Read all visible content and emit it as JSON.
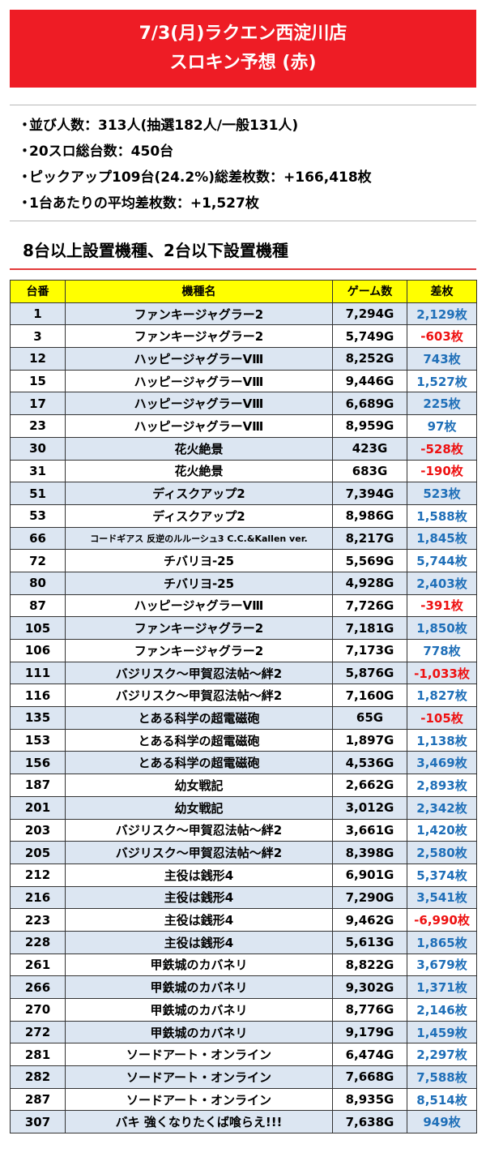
{
  "banner": {
    "line1": "7/3(月)ラクエン西淀川店",
    "line2": "スロキン予想 (赤)"
  },
  "stats": [
    "並び人数：313人(抽選182人/一般131人)",
    "20スロ総台数：450台",
    "ピックアップ109台(24.2%)総差枚数：+166,418枚",
    "1台あたりの平均差枚数：+1,527枚"
  ],
  "section_title": "8台以上設置機種、2台以下設置機種",
  "table": {
    "headers": [
      "台番",
      "機種名",
      "ゲーム数",
      "差枚"
    ],
    "rows": [
      [
        "1",
        "ファンキージャグラー2",
        "7,294G",
        "2,129枚"
      ],
      [
        "3",
        "ファンキージャグラー2",
        "5,749G",
        "-603枚"
      ],
      [
        "12",
        "ハッピージャグラーVⅢ",
        "8,252G",
        "743枚"
      ],
      [
        "15",
        "ハッピージャグラーVⅢ",
        "9,446G",
        "1,527枚"
      ],
      [
        "17",
        "ハッピージャグラーVⅢ",
        "6,689G",
        "225枚"
      ],
      [
        "23",
        "ハッピージャグラーVⅢ",
        "8,959G",
        "97枚"
      ],
      [
        "30",
        "花火絶景",
        "423G",
        "-528枚"
      ],
      [
        "31",
        "花火絶景",
        "683G",
        "-190枚"
      ],
      [
        "51",
        "ディスクアップ2",
        "7,394G",
        "523枚"
      ],
      [
        "53",
        "ディスクアップ2",
        "8,986G",
        "1,588枚"
      ],
      [
        "66",
        "コードギアス 反逆のルルーシュ3 C.C.&Kallen ver.",
        "8,217G",
        "1,845枚"
      ],
      [
        "72",
        "チバリヨ-25",
        "5,569G",
        "5,744枚"
      ],
      [
        "80",
        "チバリヨ-25",
        "4,928G",
        "2,403枚"
      ],
      [
        "87",
        "ハッピージャグラーVⅢ",
        "7,726G",
        "-391枚"
      ],
      [
        "105",
        "ファンキージャグラー2",
        "7,181G",
        "1,850枚"
      ],
      [
        "106",
        "ファンキージャグラー2",
        "7,173G",
        "778枚"
      ],
      [
        "111",
        "バジリスク～甲賀忍法帖～絆2",
        "5,876G",
        "-1,033枚"
      ],
      [
        "116",
        "バジリスク～甲賀忍法帖～絆2",
        "7,160G",
        "1,827枚"
      ],
      [
        "135",
        "とある科学の超電磁砲",
        "65G",
        "-105枚"
      ],
      [
        "153",
        "とある科学の超電磁砲",
        "1,897G",
        "1,138枚"
      ],
      [
        "156",
        "とある科学の超電磁砲",
        "4,536G",
        "3,469枚"
      ],
      [
        "187",
        "幼女戦記",
        "2,662G",
        "2,893枚"
      ],
      [
        "201",
        "幼女戦記",
        "3,012G",
        "2,342枚"
      ],
      [
        "203",
        "バジリスク～甲賀忍法帖～絆2",
        "3,661G",
        "1,420枚"
      ],
      [
        "205",
        "バジリスク～甲賀忍法帖～絆2",
        "8,398G",
        "2,580枚"
      ],
      [
        "212",
        "主役は銭形4",
        "6,901G",
        "5,374枚"
      ],
      [
        "216",
        "主役は銭形4",
        "7,290G",
        "3,541枚"
      ],
      [
        "223",
        "主役は銭形4",
        "9,462G",
        "-6,990枚"
      ],
      [
        "228",
        "主役は銭形4",
        "5,613G",
        "1,865枚"
      ],
      [
        "261",
        "甲鉄城のカバネリ",
        "8,822G",
        "3,679枚"
      ],
      [
        "266",
        "甲鉄城のカバネリ",
        "9,302G",
        "1,371枚"
      ],
      [
        "270",
        "甲鉄城のカバネリ",
        "8,776G",
        "2,146枚"
      ],
      [
        "272",
        "甲鉄城のカバネリ",
        "9,179G",
        "1,459枚"
      ],
      [
        "281",
        "ソードアート・オンライン",
        "6,474G",
        "2,297枚"
      ],
      [
        "282",
        "ソードアート・オンライン",
        "7,668G",
        "7,588枚"
      ],
      [
        "287",
        "ソードアート・オンライン",
        "8,935G",
        "8,514枚"
      ],
      [
        "307",
        "バキ 強くなりたくば喰らえ!!!",
        "7,638G",
        "949枚"
      ]
    ]
  },
  "colors": {
    "banner": "#ee1c25",
    "header": "#ffff00",
    "row_alt": "#dce6f2",
    "positive": "#1f6fb8",
    "negative": "#ee1111"
  }
}
